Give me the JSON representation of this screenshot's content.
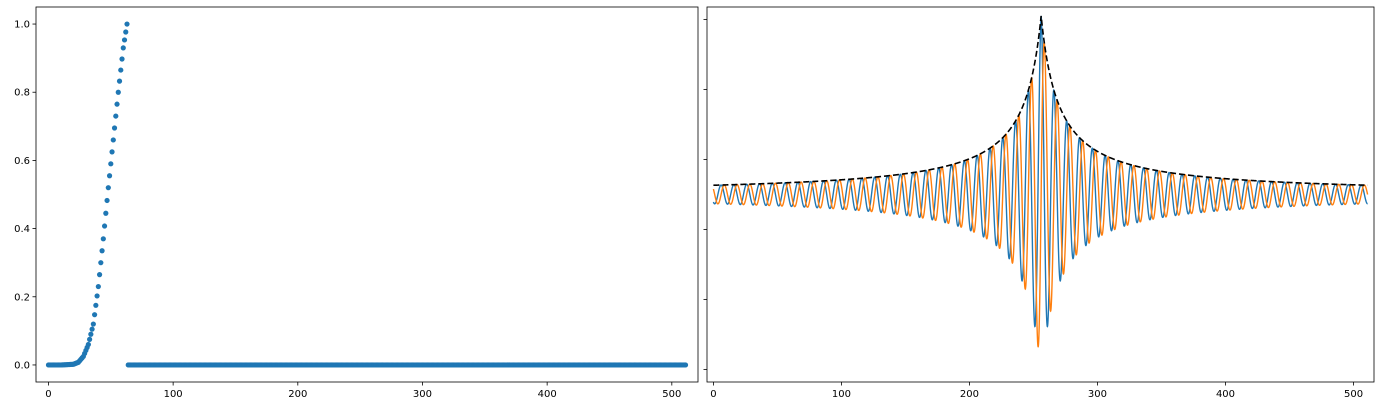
{
  "chart_data": [
    {
      "type": "scatter",
      "title": "",
      "xlabel": "",
      "ylabel": "",
      "xlim": [
        -10,
        521
      ],
      "ylim": [
        -0.05,
        1.05
      ],
      "x_ticks": [
        0,
        100,
        200,
        300,
        400,
        500
      ],
      "x_tick_labels": [
        "0",
        "100",
        "200",
        "300",
        "400",
        "500"
      ],
      "y_ticks": [
        0.0,
        0.2,
        0.4,
        0.6,
        0.8,
        1.0
      ],
      "y_tick_labels": [
        "0.0",
        "0.2",
        "0.4",
        "0.6",
        "0.8",
        "1.0"
      ],
      "grid": false,
      "series": [
        {
          "color": "#1f77b4",
          "marker": "circle",
          "x_range": [
            0,
            511
          ],
          "description_points": [
            [
              0,
              0.0
            ],
            [
              10,
              0.0
            ],
            [
              20,
              0.002
            ],
            [
              24,
              0.008
            ],
            [
              28,
              0.025
            ],
            [
              32,
              0.06
            ],
            [
              36,
              0.12
            ],
            [
              40,
              0.23
            ],
            [
              44,
              0.37
            ],
            [
              48,
              0.52
            ],
            [
              52,
              0.66
            ],
            [
              56,
              0.8
            ],
            [
              60,
              0.93
            ],
            [
              63,
              1.0
            ],
            [
              64,
              0.0
            ],
            [
              511,
              0.0
            ]
          ]
        }
      ]
    },
    {
      "type": "line",
      "title": "",
      "xlabel": "",
      "ylabel": "",
      "xlim": [
        -5,
        516
      ],
      "ylim": [
        -1.05,
        1.05
      ],
      "x_ticks": [
        0,
        100,
        200,
        300,
        400,
        500
      ],
      "x_tick_labels": [
        "0",
        "100",
        "200",
        "300",
        "400",
        "500"
      ],
      "y_tick_labels_shown": false,
      "grid": false,
      "center": 256,
      "peak": 1.0,
      "period": 10,
      "series": [
        {
          "kind": "oscillation",
          "color": "#1f77b4",
          "phase": "cos"
        },
        {
          "kind": "oscillation",
          "color": "#ff7f0e",
          "phase": "sin"
        },
        {
          "kind": "envelope",
          "color": "#000000",
          "style": "dashed"
        }
      ]
    }
  ]
}
